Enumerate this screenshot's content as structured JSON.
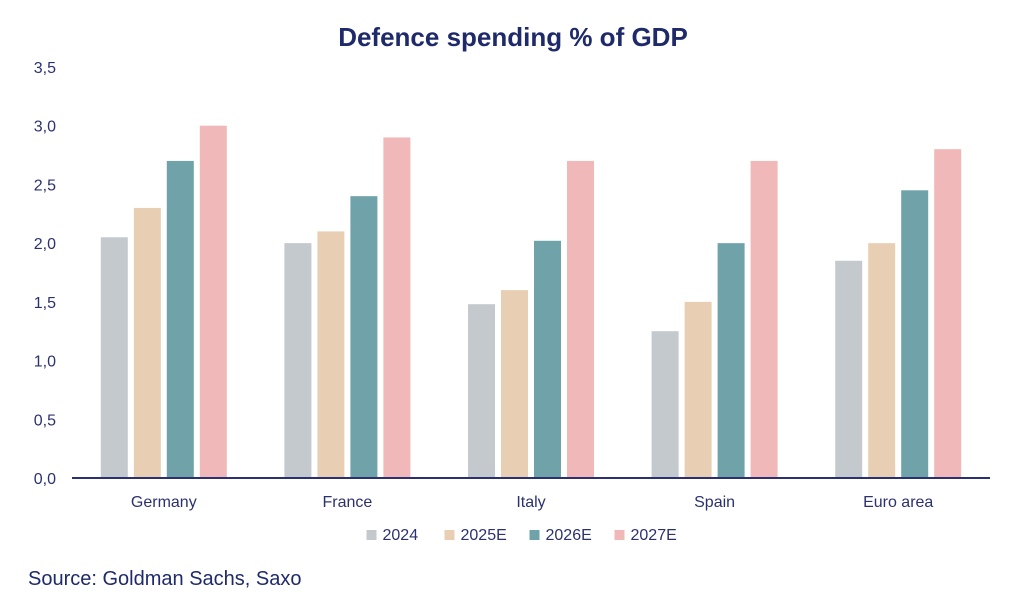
{
  "chart_data": {
    "type": "bar",
    "title": "Defence spending % of GDP",
    "categories": [
      "Germany",
      "France",
      "Italy",
      "Spain",
      "Euro area"
    ],
    "series": [
      {
        "name": "2024",
        "color": "#c3c9cd",
        "values": [
          2.05,
          2.0,
          1.48,
          1.25,
          1.85
        ]
      },
      {
        "name": "2025E",
        "color": "#e8cfb3",
        "values": [
          2.3,
          2.1,
          1.6,
          1.5,
          2.0
        ]
      },
      {
        "name": "2026E",
        "color": "#6fa3a9",
        "values": [
          2.7,
          2.4,
          2.02,
          2.0,
          2.45
        ]
      },
      {
        "name": "2027E",
        "color": "#f0b8b8",
        "values": [
          3.0,
          2.9,
          2.7,
          2.7,
          2.8
        ]
      }
    ],
    "yticks": [
      "0,0",
      "0,5",
      "1,0",
      "1,5",
      "2,0",
      "2,5",
      "3,0",
      "3,5"
    ],
    "ylim": [
      0,
      3.5
    ],
    "grid": false,
    "legend": "bottom-center",
    "source": "Source: Goldman Sachs, Saxo"
  }
}
